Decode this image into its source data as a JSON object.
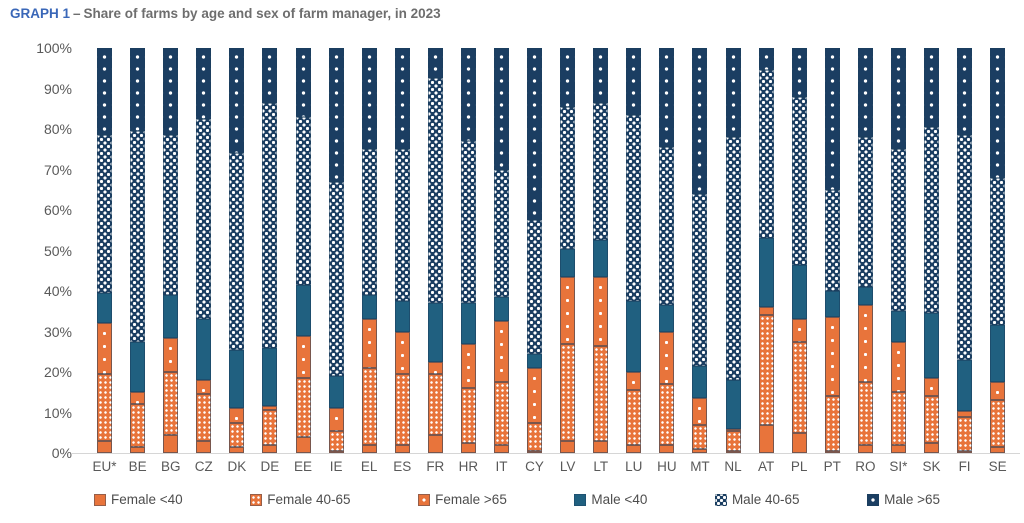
{
  "title": {
    "prefix": "GRAPH 1",
    "separator": "–",
    "text": "Share of farms by age and sex of farm manager, in 2023"
  },
  "colors": {
    "orange": "#e8743b",
    "teal": "#206080",
    "navy": "#1b3e62",
    "title_blue": "#3a67b8",
    "title_gray": "#6e6e6e",
    "axis_text": "#595959",
    "axis_line": "#d6d6d6"
  },
  "chart_data": {
    "type": "bar",
    "stacked": true,
    "unit": "%",
    "ylim": [
      0,
      100
    ],
    "grid": false,
    "legend_position": "bottom",
    "xlabel": "",
    "ylabel": "",
    "y_ticks": [
      "0%",
      "10%",
      "20%",
      "30%",
      "40%",
      "50%",
      "60%",
      "70%",
      "80%",
      "90%",
      "100%"
    ],
    "categories": [
      "EU*",
      "BE",
      "BG",
      "CZ",
      "DK",
      "DE",
      "EE",
      "IE",
      "EL",
      "ES",
      "FR",
      "HR",
      "IT",
      "CY",
      "LV",
      "LT",
      "LU",
      "HU",
      "MT",
      "NL",
      "AT",
      "PL",
      "PT",
      "RO",
      "SI*",
      "SK",
      "FI",
      "SE"
    ],
    "series": [
      {
        "name": "Female <40",
        "palette": "female",
        "pattern": "solid",
        "values": [
          3,
          1.5,
          4.5,
          3,
          1.5,
          2,
          4,
          0.5,
          2,
          2,
          4.5,
          2.5,
          2,
          0.5,
          3,
          3,
          2,
          2,
          1,
          0.5,
          7,
          5,
          0.5,
          2,
          2,
          2.5,
          0.5,
          1.5
        ]
      },
      {
        "name": "Female 40-65",
        "palette": "female",
        "pattern": "dense",
        "values": [
          16.5,
          10.5,
          15.5,
          11.5,
          6,
          8.5,
          14.5,
          5,
          19,
          17.5,
          15,
          13.5,
          15.5,
          7,
          24,
          23.5,
          13.5,
          15,
          6,
          5,
          27,
          22.5,
          13.5,
          15.5,
          13,
          11.5,
          8.5,
          11.5
        ]
      },
      {
        "name": "Female >65",
        "palette": "female",
        "pattern": "sparse",
        "values": [
          12.5,
          3,
          8.5,
          3.5,
          3.5,
          1,
          10.5,
          5.5,
          12,
          10.5,
          3,
          11,
          15,
          13.5,
          16.5,
          17,
          4.5,
          13,
          6.5,
          0.5,
          2,
          5.5,
          19.5,
          19,
          12.5,
          4.5,
          1.5,
          4.5
        ]
      },
      {
        "name": "Male <40",
        "palette": "male",
        "pattern": "solid",
        "values": [
          7.5,
          12.5,
          10.5,
          15,
          14.5,
          14.5,
          12.5,
          8,
          6,
          7.5,
          14.5,
          10,
          6,
          3.5,
          7,
          9,
          17.5,
          6.5,
          8,
          12,
          17,
          13.5,
          6.5,
          4.5,
          7.5,
          16,
          12.5,
          14
        ]
      },
      {
        "name": "Male 40-65",
        "palette": "male",
        "pattern": "dense",
        "values": [
          39,
          52,
          39.5,
          49.5,
          48.5,
          60.5,
          41.5,
          48,
          36,
          37.5,
          55.5,
          40,
          31.5,
          33,
          35,
          34,
          46,
          39,
          42.5,
          60,
          41.5,
          41.5,
          25,
          37,
          40,
          46,
          55.5,
          36.5
        ]
      },
      {
        "name": "Male >65",
        "palette": "male",
        "pattern": "sparse",
        "values": [
          21.5,
          20.5,
          21.5,
          17.5,
          26,
          13.5,
          17,
          33,
          25,
          25,
          7.5,
          23,
          30,
          42.5,
          14.5,
          13.5,
          16.5,
          24.5,
          36,
          22,
          5.5,
          12,
          35,
          22,
          25,
          19.5,
          21.5,
          32
        ]
      }
    ]
  }
}
